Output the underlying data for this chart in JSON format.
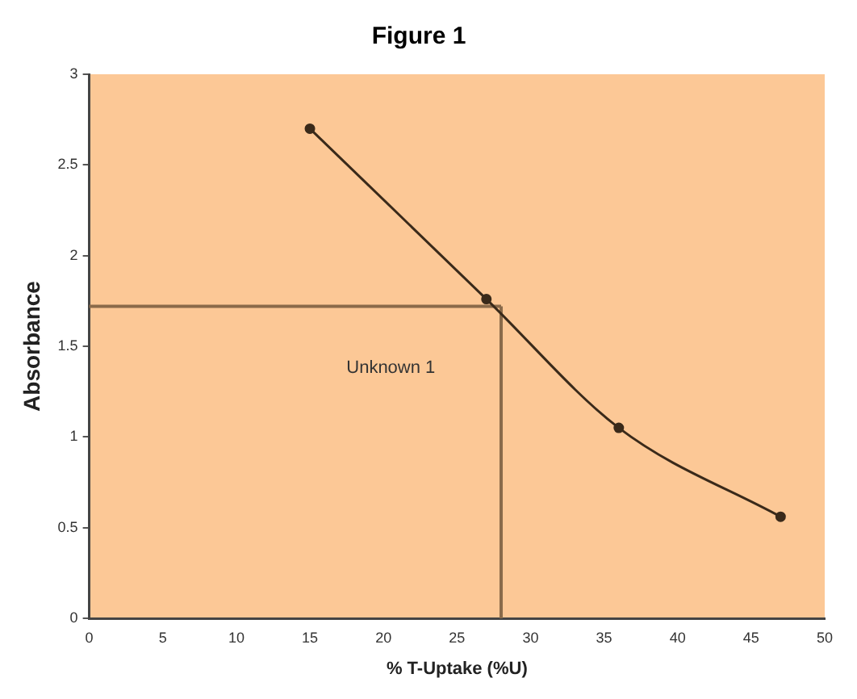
{
  "chart_data": {
    "type": "line",
    "title": "Figure 1",
    "xlabel": "% T-Uptake (%U)",
    "ylabel": "Absorbance",
    "x": [
      15,
      27,
      36,
      47
    ],
    "series": [
      {
        "color": "#3a2a1a",
        "values": [
          2.7,
          1.76,
          1.05,
          0.56
        ],
        "marker": "circle"
      }
    ],
    "ref_lines": [
      {
        "axis": "y",
        "value": 1.72,
        "color": "#8a6a4a"
      },
      {
        "axis": "x",
        "value": 28,
        "color": "#8a6a4a"
      }
    ],
    "annotations": [
      "Unknown 1"
    ],
    "xlim": [
      0,
      50
    ],
    "xticks": [
      0,
      5,
      10,
      15,
      20,
      25,
      30,
      35,
      40,
      45,
      50
    ],
    "ylim": [
      0,
      3
    ],
    "yticks": [
      0,
      0.5,
      1,
      1.5,
      2,
      2.5,
      3
    ],
    "grid": false,
    "legend": false
  }
}
